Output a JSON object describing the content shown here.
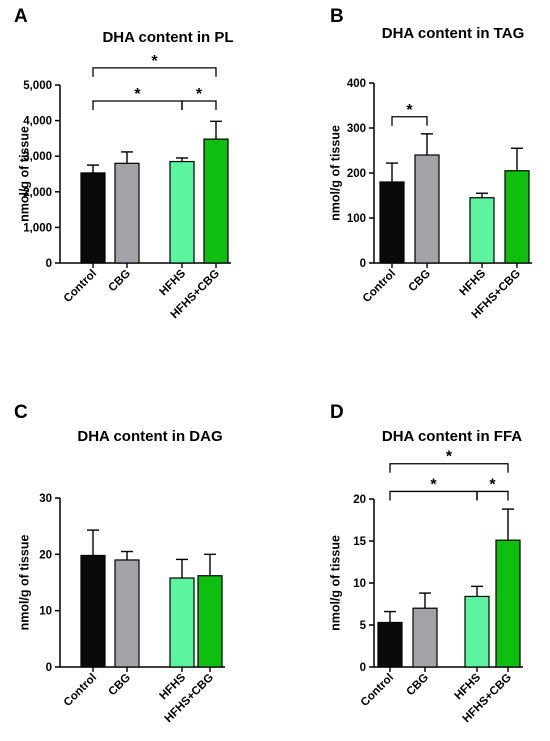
{
  "colors": {
    "bars": [
      "#0a0a0a",
      "#a3a3a7",
      "#5cf49f",
      "#0fbf0f"
    ],
    "axis": "#000000"
  },
  "chart_data": [
    {
      "type": "bar",
      "letter": "A",
      "title": "DHA content in PL",
      "ylabel": "nmol/g of tissue",
      "categories": [
        "Control",
        "CBG",
        "HFHS",
        "HFHS+CBG"
      ],
      "values": [
        2530,
        2800,
        2850,
        3480
      ],
      "errors": [
        220,
        320,
        100,
        500
      ],
      "ylim": [
        0,
        5000
      ],
      "yticks": [
        0,
        1000,
        2000,
        3000,
        4000,
        5000
      ],
      "ytick_labels": [
        "0",
        "1,000",
        "2,000",
        "3,000",
        "4,000",
        "5,000"
      ],
      "significance": [
        {
          "from": 0,
          "to": 2,
          "y": 4550,
          "label": "*"
        },
        {
          "from": 2,
          "to": 3,
          "y": 4550,
          "label": "*"
        },
        {
          "from": 0,
          "to": 3,
          "y": 5480,
          "label": "*"
        }
      ]
    },
    {
      "type": "bar",
      "letter": "B",
      "title": "DHA content in TAG",
      "ylabel": "nmol/g of tissue",
      "categories": [
        "Control",
        "CBG",
        "HFHS",
        "HFHS+CBG"
      ],
      "values": [
        180,
        240,
        145,
        205
      ],
      "errors": [
        42,
        47,
        10,
        50
      ],
      "ylim": [
        0,
        400
      ],
      "yticks": [
        0,
        100,
        200,
        300,
        400
      ],
      "ytick_labels": [
        "0",
        "100",
        "200",
        "300",
        "400"
      ],
      "significance": [
        {
          "from": 0,
          "to": 1,
          "y": 325,
          "label": "*"
        }
      ]
    },
    {
      "type": "bar",
      "letter": "C",
      "title": "DHA content in DAG",
      "ylabel": "nmol/g of tissue",
      "categories": [
        "Control",
        "CBG",
        "HFHS",
        "HFHS+CBG"
      ],
      "values": [
        19.8,
        19.0,
        15.8,
        16.2
      ],
      "errors": [
        4.5,
        1.5,
        3.3,
        3.8
      ],
      "ylim": [
        0,
        30
      ],
      "yticks": [
        0,
        10,
        20,
        30
      ],
      "ytick_labels": [
        "0",
        "10",
        "20",
        "30"
      ],
      "significance": []
    },
    {
      "type": "bar",
      "letter": "D",
      "title": "DHA content in FFA",
      "ylabel": "nmol/g of tissue",
      "categories": [
        "Control",
        "CBG",
        "HFHS",
        "HFHS+CBG"
      ],
      "values": [
        5.3,
        7.0,
        8.4,
        15.1
      ],
      "errors": [
        1.3,
        1.8,
        1.2,
        3.7
      ],
      "ylim": [
        0,
        20
      ],
      "yticks": [
        0,
        5,
        10,
        15,
        20
      ],
      "ytick_labels": [
        "0",
        "5",
        "10",
        "15",
        "20"
      ],
      "significance": [
        {
          "from": 0,
          "to": 2,
          "y": 20.9,
          "label": "*"
        },
        {
          "from": 2,
          "to": 3,
          "y": 20.9,
          "label": "*"
        },
        {
          "from": 0,
          "to": 3,
          "y": 24.2,
          "label": "*"
        }
      ]
    }
  ]
}
